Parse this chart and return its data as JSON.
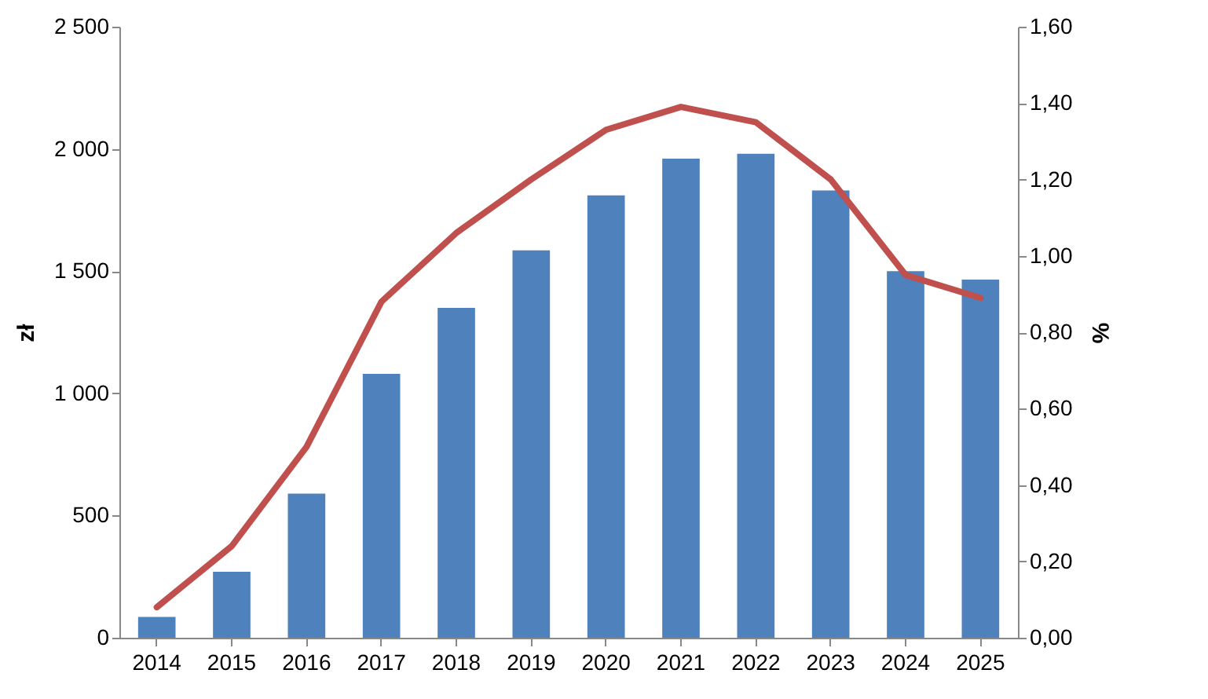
{
  "chart_data": {
    "type": "bar",
    "ylabel": "zł",
    "y2label": "%",
    "categories": [
      "2014",
      "2015",
      "2016",
      "2017",
      "2018",
      "2019",
      "2020",
      "2021",
      "2022",
      "2023",
      "2024",
      "2025"
    ],
    "series": [
      {
        "color": "#4f81bd",
        "values": [
          85,
          270,
          590,
          1080,
          1350,
          1585,
          1810,
          1960,
          1980,
          1830,
          1500,
          1465
        ]
      },
      {
        "type": "line",
        "axis": "y2",
        "color": "#c0504d",
        "marker": "none",
        "values": [
          0.08,
          0.24,
          0.5,
          0.88,
          1.06,
          1.2,
          1.33,
          1.39,
          1.35,
          1.2,
          0.95,
          0.89
        ]
      }
    ],
    "ylim": [
      0,
      2500
    ],
    "yticks": [
      {
        "value": 0,
        "label": "0"
      },
      {
        "value": 500,
        "label": "500"
      },
      {
        "value": 1000,
        "label": "1 000"
      },
      {
        "value": 1500,
        "label": "1 500"
      },
      {
        "value": 2000,
        "label": "2 000"
      },
      {
        "value": 2500,
        "label": "2 500"
      }
    ],
    "y2lim": [
      0,
      1.6
    ],
    "y2ticks": [
      {
        "value": 0,
        "label": "0,00"
      },
      {
        "value": 0.2,
        "label": "0,20"
      },
      {
        "value": 0.4,
        "label": "0,40"
      },
      {
        "value": 0.6,
        "label": "0,60"
      },
      {
        "value": 0.8,
        "label": "0,80"
      },
      {
        "value": 1.0,
        "label": "1,00"
      },
      {
        "value": 1.2,
        "label": "1,20"
      },
      {
        "value": 1.4,
        "label": "1,40"
      },
      {
        "value": 1.6,
        "label": "1,60"
      }
    ],
    "grid": false
  }
}
